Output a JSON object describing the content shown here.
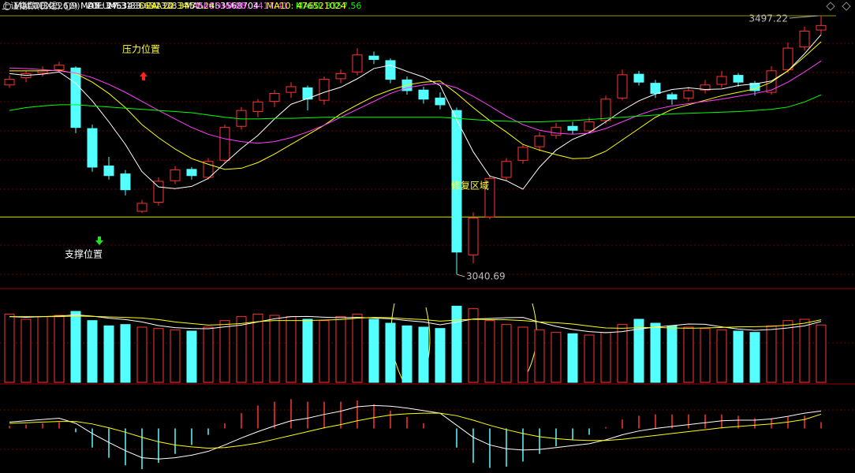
{
  "chart_data": [
    {
      "type": "candlestick",
      "title": "上证指数(日线)",
      "ylim": [
        3024,
        3525
      ],
      "up_color": "#ff3232",
      "down_color": "#54ffff",
      "open": [
        3375,
        3388,
        3396,
        3402,
        3405,
        3298,
        3232,
        3218,
        3152,
        3168,
        3206,
        3226,
        3212,
        3242,
        3302,
        3328,
        3346,
        3362,
        3370,
        3348,
        3386,
        3398,
        3426,
        3418,
        3384,
        3366,
        3352,
        3330,
        3075,
        3142,
        3212,
        3242,
        3266,
        3286,
        3302,
        3294,
        3312,
        3352,
        3394,
        3378,
        3358,
        3352,
        3366,
        3376,
        3392,
        3378,
        3362,
        3402,
        3442,
        3472
      ],
      "high": [
        3392,
        3400,
        3408,
        3416,
        3408,
        3305,
        3248,
        3225,
        3172,
        3212,
        3232,
        3230,
        3246,
        3305,
        3336,
        3350,
        3366,
        3380,
        3374,
        3390,
        3402,
        3440,
        3434,
        3422,
        3390,
        3372,
        3362,
        3335,
        3150,
        3216,
        3246,
        3270,
        3292,
        3308,
        3310,
        3318,
        3356,
        3402,
        3400,
        3384,
        3362,
        3372,
        3384,
        3400,
        3396,
        3382,
        3408,
        3450,
        3478,
        3497.22
      ],
      "low": [
        3370,
        3380,
        3390,
        3398,
        3290,
        3222,
        3208,
        3180,
        3149,
        3162,
        3200,
        3208,
        3208,
        3238,
        3296,
        3318,
        3336,
        3352,
        3330,
        3340,
        3378,
        3392,
        3412,
        3378,
        3358,
        3342,
        3332,
        3040.69,
        3060,
        3138,
        3205,
        3236,
        3258,
        3280,
        3288,
        3290,
        3306,
        3348,
        3374,
        3352,
        3340,
        3346,
        3360,
        3370,
        3372,
        3356,
        3358,
        3396,
        3436,
        3464
      ],
      "close": [
        3385,
        3395,
        3400,
        3410,
        3300,
        3230,
        3215,
        3190,
        3166,
        3205,
        3225,
        3215,
        3240,
        3300,
        3330,
        3345,
        3360,
        3372,
        3350,
        3385,
        3395,
        3428,
        3420,
        3385,
        3365,
        3350,
        3340,
        3080,
        3140,
        3210,
        3240,
        3265,
        3285,
        3300,
        3295,
        3310,
        3350,
        3393,
        3380,
        3360,
        3350,
        3365,
        3375,
        3390,
        3380,
        3365,
        3400,
        3440,
        3470,
        3480
      ],
      "series": [
        {
          "name": "MA5: 3463.83",
          "color": "#ffffff",
          "values": [
            3395,
            3392,
            3394,
            3398,
            3378,
            3347,
            3310,
            3270,
            3222,
            3195,
            3192,
            3196,
            3210,
            3237,
            3263,
            3286,
            3315,
            3341,
            3351,
            3362,
            3371,
            3386,
            3404,
            3410,
            3399,
            3389,
            3374,
            3314,
            3257,
            3214,
            3206,
            3191,
            3230,
            3260,
            3279,
            3291,
            3310,
            3330,
            3347,
            3359,
            3367,
            3370,
            3367,
            3368,
            3374,
            3377,
            3382,
            3400,
            3430,
            3463.83
          ]
        },
        {
          "name": "MA10: 3451.28",
          "color": "#ffff00",
          "values": [
            3400,
            3400,
            3400,
            3401,
            3395,
            3380,
            3360,
            3335,
            3305,
            3282,
            3262,
            3245,
            3235,
            3226,
            3228,
            3238,
            3253,
            3270,
            3287,
            3304,
            3324,
            3340,
            3355,
            3366,
            3375,
            3380,
            3382,
            3360,
            3335,
            3312,
            3292,
            3270,
            3260,
            3252,
            3245,
            3246,
            3258,
            3278,
            3298,
            3318,
            3332,
            3340,
            3348,
            3356,
            3362,
            3368,
            3380,
            3400,
            3425,
            3451.28
          ]
        },
        {
          "name": "MA20: 3417.41",
          "color": "#ff40ff",
          "values": [
            3405,
            3404,
            3402,
            3400,
            3396,
            3388,
            3376,
            3362,
            3346,
            3330,
            3315,
            3300,
            3288,
            3280,
            3275,
            3272,
            3275,
            3282,
            3292,
            3304,
            3318,
            3332,
            3346,
            3360,
            3370,
            3375,
            3378,
            3370,
            3355,
            3338,
            3320,
            3305,
            3295,
            3290,
            3288,
            3290,
            3298,
            3310,
            3322,
            3332,
            3338,
            3342,
            3346,
            3350,
            3355,
            3360,
            3366,
            3380,
            3398,
            3417.41
          ]
        },
        {
          "name": "MA60: 3357.56",
          "color": "#00ff00",
          "values": [
            3330,
            3335,
            3338,
            3340,
            3340,
            3338,
            3336,
            3334,
            3332,
            3330,
            3328,
            3326,
            3322,
            3318,
            3315,
            3315,
            3316,
            3316,
            3317,
            3318,
            3318,
            3318,
            3318,
            3318,
            3318,
            3318,
            3318,
            3316,
            3314,
            3312,
            3311,
            3310,
            3310,
            3311,
            3312,
            3314,
            3316,
            3318,
            3320,
            3322,
            3324,
            3325,
            3326,
            3327,
            3328,
            3330,
            3332,
            3336,
            3345,
            3357.56
          ]
        }
      ],
      "reference_lines": [
        3142
      ],
      "annotations": [
        "压力位置",
        "支撑位置",
        "修复区域"
      ]
    },
    {
      "type": "bar",
      "title": "VOL-TDX(5,10)",
      "ylim": [
        0,
        600000000
      ],
      "label": "VOLUME: 436631328",
      "values": [
        520000000,
        480000000,
        500000000,
        510000000,
        540000000,
        470000000,
        430000000,
        440000000,
        420000000,
        410000000,
        400000000,
        390000000,
        420000000,
        470000000,
        500000000,
        520000000,
        510000000,
        500000000,
        480000000,
        470000000,
        500000000,
        520000000,
        480000000,
        450000000,
        430000000,
        420000000,
        410000000,
        580000000,
        560000000,
        470000000,
        440000000,
        420000000,
        400000000,
        380000000,
        370000000,
        360000000,
        380000000,
        440000000,
        480000000,
        450000000,
        430000000,
        420000000,
        410000000,
        400000000,
        390000000,
        380000000,
        430000000,
        470000000,
        480000000,
        436631328
      ],
      "series": [
        {
          "name": "MA5: 463568704",
          "color": "#ffffff",
          "values": [
            500000000,
            495000000,
            500000000,
            505000000,
            514000000,
            504000000,
            488000000,
            478000000,
            460000000,
            432000000,
            416000000,
            410000000,
            408000000,
            422000000,
            436000000,
            460000000,
            484000000,
            500000000,
            502000000,
            496000000,
            492000000,
            494000000,
            490000000,
            484000000,
            470000000,
            460000000,
            438000000,
            458000000,
            482000000,
            486000000,
            492000000,
            494000000,
            458000000,
            426000000,
            402000000,
            386000000,
            378000000,
            386000000,
            406000000,
            420000000,
            432000000,
            444000000,
            442000000,
            422000000,
            406000000,
            396000000,
            402000000,
            414000000,
            430000000,
            463568704
          ]
        },
        {
          "name": "MA10: 476521024",
          "color": "#ffff00",
          "values": [
            500000000,
            500000000,
            500000000,
            500000000,
            505000000,
            502000000,
            498000000,
            494000000,
            490000000,
            478000000,
            460000000,
            448000000,
            436000000,
            440000000,
            448000000,
            462000000,
            470000000,
            470000000,
            470000000,
            474000000,
            478000000,
            488000000,
            494000000,
            492000000,
            484000000,
            478000000,
            466000000,
            474000000,
            480000000,
            478000000,
            476000000,
            470000000,
            460000000,
            454000000,
            444000000,
            428000000,
            414000000,
            412000000,
            416000000,
            418000000,
            414000000,
            412000000,
            414000000,
            418000000,
            422000000,
            424000000,
            426000000,
            436000000,
            450000000,
            476521024
          ]
        }
      ]
    },
    {
      "type": "macd",
      "title": "MACD(12,26,9)",
      "ylim": [
        -70,
        60
      ],
      "series": [
        {
          "name": "DIF: 27.31",
          "color": "#ffffff",
          "values": [
            10,
            12,
            14,
            16,
            8,
            -8,
            -22,
            -35,
            -46,
            -48,
            -46,
            -42,
            -36,
            -26,
            -15,
            -5,
            4,
            12,
            16,
            22,
            27,
            34,
            36,
            35,
            32,
            28,
            24,
            5,
            -14,
            -26,
            -32,
            -34,
            -33,
            -30,
            -27,
            -24,
            -18,
            -10,
            -4,
            0,
            3,
            6,
            9,
            12,
            13,
            13,
            15,
            19,
            24,
            27.31
          ]
        },
        {
          "name": "DEA: 22.34",
          "color": "#ffff00",
          "values": [
            8,
            9,
            10,
            11,
            11,
            7,
            1,
            -6,
            -14,
            -21,
            -26,
            -29,
            -31,
            -30,
            -27,
            -23,
            -17,
            -11,
            -5,
            1,
            6,
            12,
            17,
            21,
            23,
            24,
            24,
            20,
            13,
            5,
            -2,
            -8,
            -13,
            -16,
            -18,
            -19,
            -19,
            -17,
            -14,
            -11,
            -8,
            -5,
            -2,
            1,
            3,
            5,
            7,
            10,
            14,
            22.34
          ]
        }
      ],
      "bars": {
        "name": "MACD: 9.95",
        "color": "#ff40ff",
        "up_color": "#ff3232",
        "down_color": "#54ffff",
        "values": [
          4,
          6,
          8,
          10,
          -6,
          -30,
          -46,
          -58,
          -64,
          -54,
          -40,
          -26,
          -10,
          8,
          24,
          36,
          42,
          46,
          42,
          42,
          42,
          44,
          38,
          28,
          18,
          8,
          0,
          -30,
          -54,
          -62,
          -60,
          -52,
          -40,
          -28,
          -18,
          -10,
          2,
          14,
          20,
          22,
          22,
          22,
          22,
          22,
          20,
          16,
          16,
          18,
          20,
          9.95
        ]
      }
    }
  ]
}
